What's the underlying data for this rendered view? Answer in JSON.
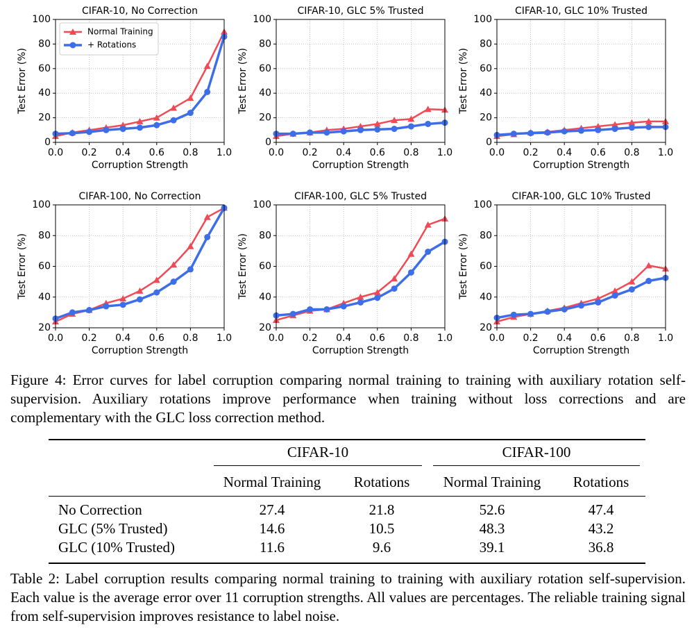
{
  "chart_data": [
    {
      "type": "line",
      "title": "CIFAR-10, No Correction",
      "x_label": "Corruption Strength",
      "y_label": "Test Error (%)",
      "x": [
        0,
        0.1,
        0.2,
        0.3,
        0.4,
        0.5,
        0.6,
        0.7,
        0.8,
        0.9,
        1.0
      ],
      "series": [
        {
          "name": "Normal Training",
          "color": "#ef4a55",
          "marker": "triangle",
          "values": [
            5,
            8,
            10,
            12,
            14,
            17,
            20,
            28,
            36,
            62,
            90
          ]
        },
        {
          "name": "+ Rotations",
          "color": "#3d6ee8",
          "marker": "circle",
          "values": [
            7,
            7.5,
            8.5,
            10,
            11,
            12,
            14,
            18,
            24,
            41,
            86
          ]
        }
      ],
      "xlim": [
        0,
        1
      ],
      "xticks": [
        {
          "value": 0,
          "label": "0.0"
        },
        0.2,
        0.4,
        0.6,
        0.8,
        {
          "value": 1,
          "label": "1.0"
        }
      ],
      "ylim": [
        0,
        100
      ],
      "yticks": [
        0,
        20,
        40,
        60,
        80,
        100
      ],
      "grid": true,
      "legend": "upper left"
    },
    {
      "type": "line",
      "title": "CIFAR-10, GLC 5% Trusted",
      "x_label": "Corruption Strength",
      "y_label": "Test Error (%)",
      "x": [
        0,
        0.1,
        0.2,
        0.3,
        0.4,
        0.5,
        0.6,
        0.7,
        0.8,
        0.9,
        1.0
      ],
      "series": [
        {
          "color": "#ef4a55",
          "marker": "triangle",
          "values": [
            5,
            7,
            8,
            10,
            11,
            13,
            15,
            18,
            19,
            27,
            26.5
          ]
        },
        {
          "color": "#3d6ee8",
          "marker": "circle",
          "values": [
            7,
            7,
            8,
            8,
            9,
            10,
            10.5,
            11,
            13,
            15,
            16
          ]
        }
      ],
      "xlim": [
        0,
        1
      ],
      "xticks": [
        {
          "value": 0,
          "label": "0.0"
        },
        0.2,
        0.4,
        0.6,
        0.8,
        {
          "value": 1,
          "label": "1.0"
        }
      ],
      "ylim": [
        0,
        100
      ],
      "yticks": [
        0,
        20,
        40,
        60,
        80,
        100
      ],
      "grid": true
    },
    {
      "type": "line",
      "title": "CIFAR-10, GLC 10% Trusted",
      "x_label": "Corruption Strength",
      "y_label": "Test Error (%)",
      "x": [
        0,
        0.1,
        0.2,
        0.3,
        0.4,
        0.5,
        0.6,
        0.7,
        0.8,
        0.9,
        1.0
      ],
      "series": [
        {
          "color": "#ef4a55",
          "marker": "triangle",
          "values": [
            5,
            6.5,
            8,
            8.5,
            10,
            11.5,
            13,
            14.5,
            16,
            17,
            17
          ]
        },
        {
          "color": "#3d6ee8",
          "marker": "circle",
          "values": [
            6,
            7,
            7.5,
            8,
            9,
            9.5,
            10,
            11,
            12,
            12.5,
            12.5
          ]
        }
      ],
      "xlim": [
        0,
        1
      ],
      "xticks": [
        {
          "value": 0,
          "label": "0.0"
        },
        0.2,
        0.4,
        0.6,
        0.8,
        {
          "value": 1,
          "label": "1.0"
        }
      ],
      "ylim": [
        0,
        100
      ],
      "yticks": [
        0,
        20,
        40,
        60,
        80,
        100
      ],
      "grid": true
    },
    {
      "type": "line",
      "title": "CIFAR-100, No Correction",
      "x_label": "Corruption Strength",
      "y_label": "Test Error (%)",
      "x": [
        0,
        0.1,
        0.2,
        0.3,
        0.4,
        0.5,
        0.6,
        0.7,
        0.8,
        0.9,
        1.0
      ],
      "series": [
        {
          "color": "#ef4a55",
          "marker": "triangle",
          "values": [
            24,
            29,
            31.5,
            36,
            39,
            44,
            51,
            61,
            73,
            92,
            98
          ]
        },
        {
          "color": "#3d6ee8",
          "marker": "circle",
          "values": [
            26,
            30,
            31.5,
            34,
            35,
            38.5,
            43,
            50,
            58,
            79,
            98
          ]
        }
      ],
      "xlim": [
        0,
        1
      ],
      "xticks": [
        {
          "value": 0,
          "label": "0.0"
        },
        0.2,
        0.4,
        0.6,
        0.8,
        {
          "value": 1,
          "label": "1.0"
        }
      ],
      "ylim": [
        20,
        100
      ],
      "yticks": [
        20,
        40,
        60,
        80,
        100
      ],
      "grid": true
    },
    {
      "type": "line",
      "title": "CIFAR-100, GLC 5% Trusted",
      "x_label": "Corruption Strength",
      "y_label": "Test Error (%)",
      "x": [
        0,
        0.1,
        0.2,
        0.3,
        0.4,
        0.5,
        0.6,
        0.7,
        0.8,
        0.9,
        1.0
      ],
      "series": [
        {
          "color": "#ef4a55",
          "marker": "triangle",
          "values": [
            25,
            28,
            31,
            32,
            36,
            40,
            43,
            52,
            68,
            87,
            91
          ]
        },
        {
          "color": "#3d6ee8",
          "marker": "circle",
          "values": [
            28,
            29,
            32,
            32,
            34,
            36.5,
            39.5,
            45.5,
            56,
            69.5,
            76
          ]
        }
      ],
      "xlim": [
        0,
        1
      ],
      "xticks": [
        {
          "value": 0,
          "label": "0.0"
        },
        0.2,
        0.4,
        0.6,
        0.8,
        {
          "value": 1,
          "label": "1.0"
        }
      ],
      "ylim": [
        20,
        100
      ],
      "yticks": [
        20,
        40,
        60,
        80,
        100
      ],
      "grid": true
    },
    {
      "type": "line",
      "title": "CIFAR-100, GLC 10% Trusted",
      "x_label": "Corruption Strength",
      "y_label": "Test Error (%)",
      "x": [
        0,
        0.1,
        0.2,
        0.3,
        0.4,
        0.5,
        0.6,
        0.7,
        0.8,
        0.9,
        1.0
      ],
      "series": [
        {
          "color": "#ef4a55",
          "marker": "triangle",
          "values": [
            24,
            27,
            29,
            31,
            33,
            36,
            39,
            44,
            50,
            60.5,
            58.5
          ]
        },
        {
          "color": "#3d6ee8",
          "marker": "circle",
          "values": [
            26.5,
            28.5,
            29,
            30.5,
            32,
            34.5,
            36.5,
            41,
            45,
            50.5,
            52.5
          ]
        }
      ],
      "xlim": [
        0,
        1
      ],
      "xticks": [
        {
          "value": 0,
          "label": "0.0"
        },
        0.2,
        0.4,
        0.6,
        0.8,
        {
          "value": 1,
          "label": "1.0"
        }
      ],
      "ylim": [
        20,
        100
      ],
      "yticks": [
        20,
        40,
        60,
        80,
        100
      ],
      "grid": true
    }
  ],
  "figure_caption": "Figure 4: Error curves for label corruption comparing normal training to training with auxiliary rotation self-supervision. Auxiliary rotations improve performance when training without loss corrections and are complementary with the GLC loss correction method.",
  "table": {
    "groups": [
      "CIFAR-10",
      "CIFAR-100"
    ],
    "columns": [
      "Normal Training",
      "Rotations",
      "Normal Training",
      "Rotations"
    ],
    "rows": [
      [
        "No Correction",
        27.4,
        21.8,
        52.6,
        47.4
      ],
      [
        "GLC (5% Trusted)",
        14.6,
        10.5,
        48.3,
        43.2
      ],
      [
        "GLC (10% Trusted)",
        11.6,
        9.6,
        39.1,
        36.8
      ]
    ]
  },
  "table_caption": "Table 2: Label corruption results comparing normal training to training with auxiliary rotation self-supervision. Each value is the average error over 11 corruption strengths. All values are percentages. The reliable training signal from self-supervision improves resistance to label noise."
}
